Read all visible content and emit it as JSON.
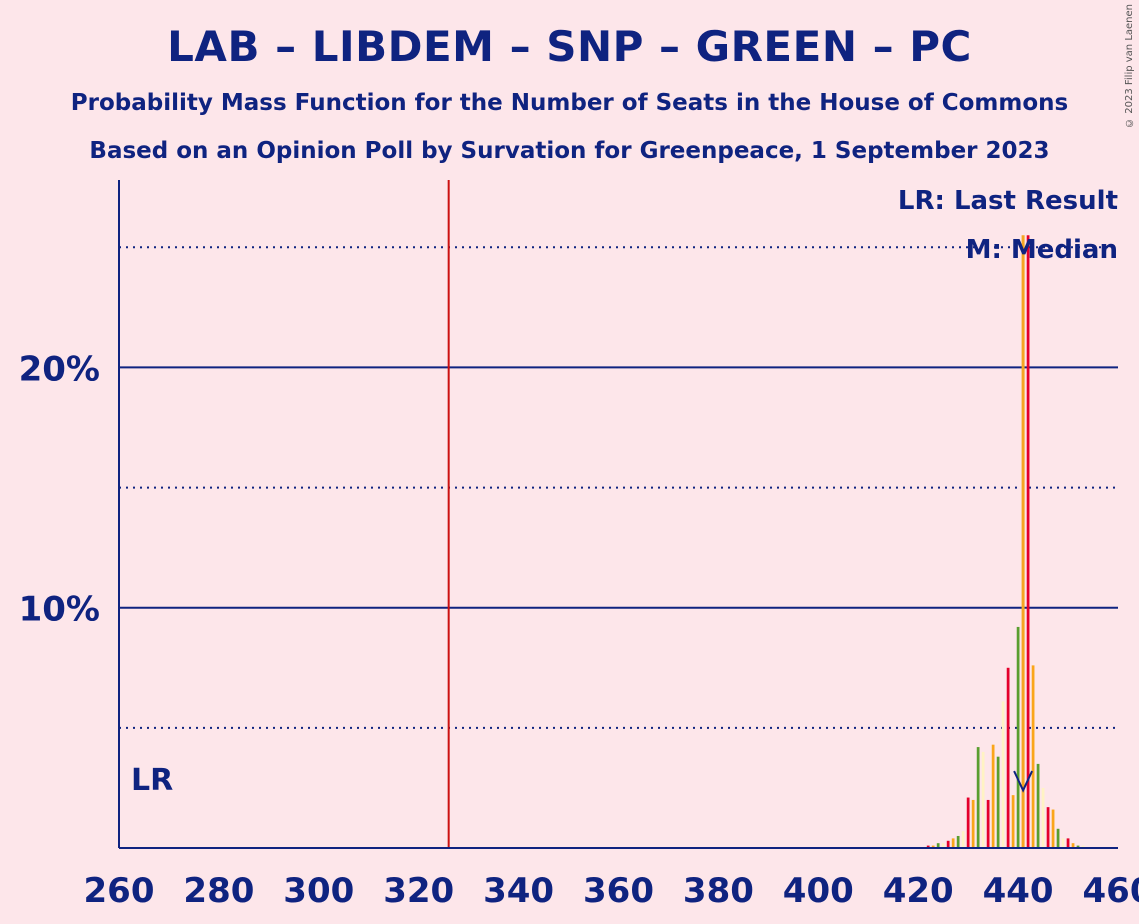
{
  "title": "LAB – LIBDEM – SNP – GREEN – PC",
  "subtitle1": "Probability Mass Function for the Number of Seats in the House of Commons",
  "subtitle2": "Based on an Opinion Poll by Survation for Greenpeace, 1 September 2023",
  "copyright": "© 2023 Filip van Laenen",
  "legend": {
    "last_result": "LR: Last Result",
    "median": "M: Median",
    "lr_marker": "LR"
  },
  "colors": {
    "background": "#fde6ea",
    "text": "#0f2380",
    "majority_line": "#cc1111",
    "median_line": "#f5a623",
    "lab": "#e4002b",
    "libdem": "#faa61a",
    "green": "#5a9e2f",
    "light": "#fff3c4"
  },
  "chart_data": {
    "type": "bar",
    "xlabel": "",
    "ylabel": "",
    "xlim": [
      260,
      460
    ],
    "ylim": [
      0,
      27.8
    ],
    "x_ticks": [
      260,
      280,
      300,
      320,
      340,
      360,
      380,
      400,
      420,
      440,
      460
    ],
    "y_ticks": [
      {
        "value": 10,
        "label": "10%"
      },
      {
        "value": 20,
        "label": "20%"
      }
    ],
    "y_minor_gridlines": [
      5,
      15,
      25
    ],
    "majority": 326,
    "median": 441,
    "last_result": 263,
    "series": [
      {
        "x": [
          422,
          423,
          424,
          425,
          426,
          427,
          428,
          429,
          430,
          431,
          432,
          433,
          434,
          435,
          436,
          437,
          438,
          439,
          440,
          441,
          442,
          443,
          444,
          445,
          446,
          447,
          448,
          449,
          450,
          451,
          452,
          453
        ],
        "values": [
          0.1,
          0.1,
          0.2,
          0.2,
          0.3,
          0.4,
          0.5,
          0.7,
          2.1,
          2.0,
          4.2,
          4.0,
          2.0,
          4.3,
          3.8,
          6.1,
          7.5,
          2.2,
          9.2,
          5.8,
          25.5,
          7.6,
          3.5,
          2.5,
          1.7,
          1.6,
          0.8,
          0.4,
          0.4,
          0.2,
          0.1,
          0.1
        ]
      }
    ]
  }
}
